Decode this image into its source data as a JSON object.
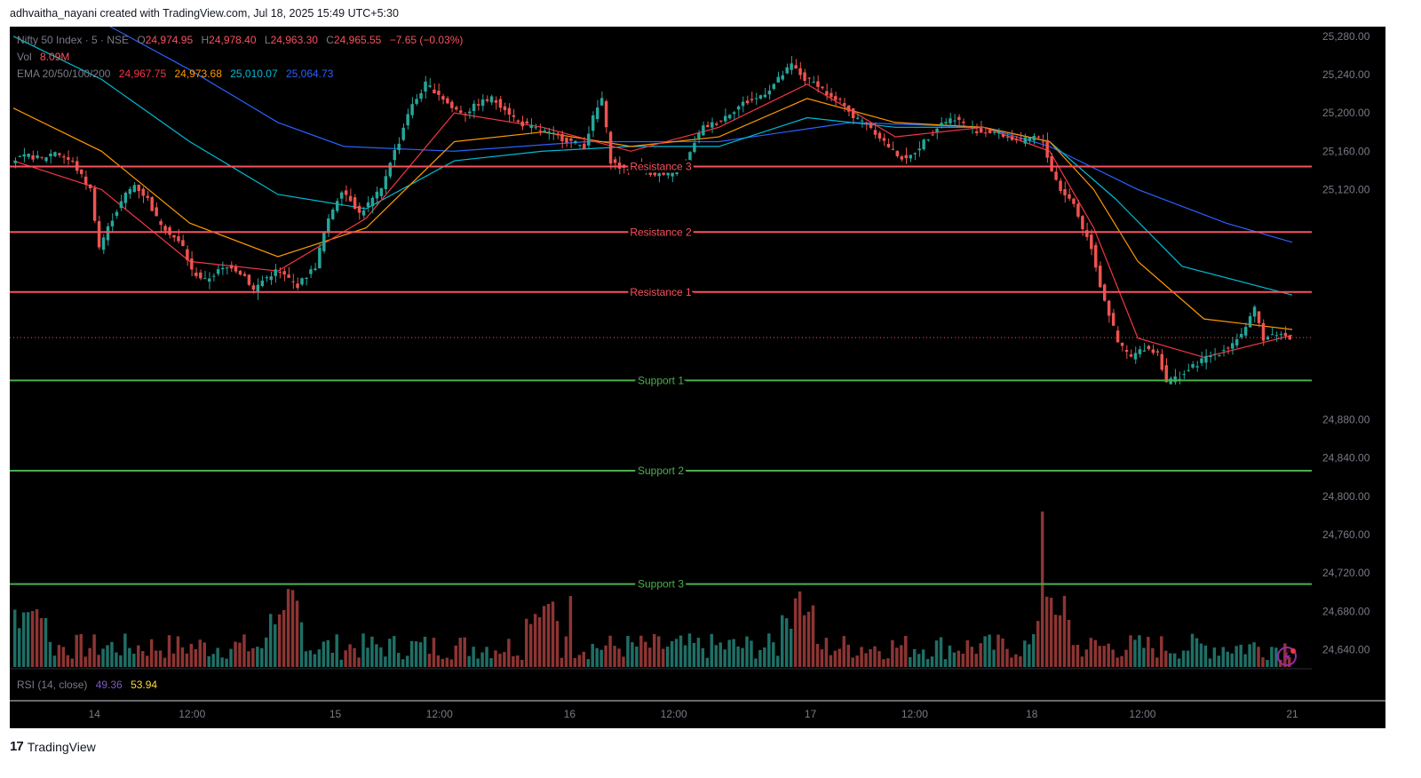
{
  "header": {
    "attribution": "adhvaitha_nayani created with TradingView.com, Jul 18, 2025 15:49 UTC+5:30"
  },
  "legend": {
    "symbol": "Nifty 50 Index · 5 · NSE",
    "open_label": "O",
    "open": "24,974.95",
    "high_label": "H",
    "high": "24,978.40",
    "low_label": "L",
    "low": "24,963.30",
    "close_label": "C",
    "close": "24,965.55",
    "change": "−7.65 (−0.03%)",
    "vol_label": "Vol",
    "vol": "8.09M",
    "ema_label": "EMA 20/50/100/200",
    "ema20": "24,967.75",
    "ema50": "24,973.68",
    "ema100": "25,010.07",
    "ema200": "25,064.73"
  },
  "rsi": {
    "label": "RSI (14, close)",
    "rsi": "49.36",
    "ma": "53.94"
  },
  "colors": {
    "background": "#000000",
    "up": "#26a69a",
    "down": "#ef5350",
    "resistance": "#f7525f",
    "support": "#4caf50",
    "ema20": "#f23645",
    "ema50": "#ff9800",
    "ema100": "#00bcd4",
    "ema200": "#2962ff"
  },
  "chart_data": {
    "type": "candlestick",
    "title": "Nifty 50 Index · 5 · NSE",
    "ylim": [
      24620,
      25290
    ],
    "y_ticks": [
      "25,280.00",
      "25,240.00",
      "25,200.00",
      "25,160.00",
      "25,120.00",
      "24,880.00",
      "24,840.00",
      "24,800.00",
      "24,760.00",
      "24,720.00",
      "24,680.00",
      "24,640.00"
    ],
    "x_ticks": [
      "14",
      "12:00",
      "15",
      "12:00",
      "16",
      "12:00",
      "17",
      "12:00",
      "18",
      "12:00",
      "21"
    ],
    "levels": [
      {
        "name": "Resistance 3",
        "value": 25144.1,
        "label": "25,144.10",
        "kind": "resistance"
      },
      {
        "name": "Resistance 2",
        "value": 25075.65,
        "label": "25,075.65",
        "kind": "resistance"
      },
      {
        "name": "Resistance 1",
        "value": 25013.1,
        "label": "25,013.10",
        "kind": "resistance"
      },
      {
        "name": "Support 1",
        "value": 24920.85,
        "label": "24,920.85",
        "kind": "support"
      },
      {
        "name": "Support 2",
        "value": 24826.6,
        "label": "24,826.60",
        "kind": "support"
      },
      {
        "name": "Support 3",
        "value": 24708.35,
        "label": "24,708.35",
        "kind": "support"
      }
    ],
    "price_tags": [
      {
        "label": "25,064.73",
        "value": 25064.73,
        "color": "#2962ff"
      },
      {
        "label": "25,010.07",
        "value": 25010.07,
        "color": "#00bcd4"
      },
      {
        "label": "24,973.68",
        "value": 24973.68,
        "color": "#ff9800"
      },
      {
        "label": "24,967.75",
        "value": 24967.75,
        "color": "#f23645"
      },
      {
        "label": "24,965.55",
        "value": 24965.55,
        "color": "#f7525f"
      }
    ],
    "last_price": 24965.55,
    "volume_tag": "8.09M",
    "close_path": [
      [
        0,
        25150
      ],
      [
        4,
        25155
      ],
      [
        7,
        25152
      ],
      [
        10,
        25160
      ],
      [
        14,
        25148
      ],
      [
        18,
        25120
      ],
      [
        20,
        25060
      ],
      [
        23,
        25090
      ],
      [
        26,
        25115
      ],
      [
        28,
        25125
      ],
      [
        31,
        25110
      ],
      [
        33,
        25090
      ],
      [
        36,
        25075
      ],
      [
        39,
        25060
      ],
      [
        41,
        25035
      ],
      [
        44,
        25025
      ],
      [
        47,
        25035
      ],
      [
        50,
        25040
      ],
      [
        53,
        25030
      ],
      [
        55,
        25015
      ],
      [
        57,
        25025
      ],
      [
        60,
        25035
      ],
      [
        62,
        25030
      ],
      [
        65,
        25020
      ],
      [
        67,
        25030
      ],
      [
        69,
        25040
      ],
      [
        71,
        25075
      ],
      [
        73,
        25100
      ],
      [
        75,
        25120
      ],
      [
        77,
        25110
      ],
      [
        79,
        25095
      ],
      [
        81,
        25105
      ],
      [
        84,
        25120
      ],
      [
        86,
        25150
      ],
      [
        88,
        25170
      ],
      [
        90,
        25200
      ],
      [
        92,
        25215
      ],
      [
        94,
        25230
      ],
      [
        97,
        25220
      ],
      [
        100,
        25205
      ],
      [
        103,
        25200
      ],
      [
        106,
        25210
      ],
      [
        109,
        25215
      ],
      [
        112,
        25205
      ],
      [
        115,
        25190
      ],
      [
        118,
        25185
      ],
      [
        121,
        25180
      ],
      [
        124,
        25175
      ],
      [
        127,
        25170
      ],
      [
        130,
        25165
      ],
      [
        132,
        25195
      ],
      [
        134,
        25215
      ],
      [
        136,
        25150
      ],
      [
        139,
        25140
      ],
      [
        142,
        25145
      ],
      [
        145,
        25138
      ],
      [
        148,
        25135
      ],
      [
        151,
        25140
      ],
      [
        153,
        25145
      ],
      [
        155,
        25170
      ],
      [
        157,
        25185
      ],
      [
        160,
        25190
      ],
      [
        163,
        25200
      ],
      [
        166,
        25210
      ],
      [
        169,
        25215
      ],
      [
        172,
        25225
      ],
      [
        175,
        25240
      ],
      [
        177,
        25250
      ],
      [
        180,
        25235
      ],
      [
        183,
        25230
      ],
      [
        186,
        25215
      ],
      [
        189,
        25210
      ],
      [
        191,
        25195
      ],
      [
        194,
        25190
      ],
      [
        197,
        25175
      ],
      [
        200,
        25160
      ],
      [
        203,
        25150
      ],
      [
        205,
        25160
      ],
      [
        208,
        25175
      ],
      [
        211,
        25190
      ],
      [
        214,
        25195
      ],
      [
        217,
        25185
      ],
      [
        220,
        25180
      ],
      [
        223,
        25180
      ],
      [
        226,
        25175
      ],
      [
        229,
        25170
      ],
      [
        232,
        25175
      ],
      [
        234,
        25170
      ],
      [
        236,
        25140
      ],
      [
        238,
        25120
      ],
      [
        241,
        25105
      ],
      [
        243,
        25080
      ],
      [
        245,
        25060
      ],
      [
        247,
        25020
      ],
      [
        249,
        24990
      ],
      [
        251,
        24960
      ],
      [
        254,
        24945
      ],
      [
        257,
        24955
      ],
      [
        260,
        24950
      ],
      [
        262,
        24920
      ],
      [
        265,
        24925
      ],
      [
        268,
        24935
      ],
      [
        271,
        24945
      ],
      [
        274,
        24950
      ],
      [
        277,
        24960
      ],
      [
        280,
        24975
      ],
      [
        282,
        24995
      ],
      [
        284,
        24965
      ],
      [
        287,
        24970
      ],
      [
        290,
        24966
      ]
    ],
    "ema20": [
      [
        0,
        25150
      ],
      [
        20,
        25120
      ],
      [
        40,
        25045
      ],
      [
        60,
        25035
      ],
      [
        80,
        25090
      ],
      [
        100,
        25200
      ],
      [
        120,
        25185
      ],
      [
        140,
        25160
      ],
      [
        160,
        25185
      ],
      [
        180,
        25230
      ],
      [
        200,
        25175
      ],
      [
        220,
        25185
      ],
      [
        235,
        25160
      ],
      [
        245,
        25080
      ],
      [
        255,
        24965
      ],
      [
        270,
        24945
      ],
      [
        290,
        24968
      ]
    ],
    "ema50": [
      [
        0,
        25205
      ],
      [
        20,
        25160
      ],
      [
        40,
        25085
      ],
      [
        60,
        25050
      ],
      [
        80,
        25080
      ],
      [
        100,
        25170
      ],
      [
        120,
        25180
      ],
      [
        140,
        25165
      ],
      [
        160,
        25175
      ],
      [
        180,
        25215
      ],
      [
        200,
        25190
      ],
      [
        220,
        25185
      ],
      [
        235,
        25170
      ],
      [
        245,
        25120
      ],
      [
        255,
        25045
      ],
      [
        270,
        24985
      ],
      [
        290,
        24974
      ]
    ],
    "ema100": [
      [
        0,
        25280
      ],
      [
        20,
        25235
      ],
      [
        40,
        25170
      ],
      [
        60,
        25115
      ],
      [
        80,
        25100
      ],
      [
        100,
        25150
      ],
      [
        120,
        25160
      ],
      [
        140,
        25165
      ],
      [
        160,
        25165
      ],
      [
        180,
        25195
      ],
      [
        200,
        25185
      ],
      [
        220,
        25185
      ],
      [
        235,
        25170
      ],
      [
        250,
        25110
      ],
      [
        265,
        25040
      ],
      [
        290,
        25010
      ]
    ],
    "ema200": [
      [
        0,
        25330
      ],
      [
        20,
        25295
      ],
      [
        40,
        25245
      ],
      [
        60,
        25190
      ],
      [
        75,
        25165
      ],
      [
        100,
        25160
      ],
      [
        130,
        25170
      ],
      [
        160,
        25170
      ],
      [
        190,
        25190
      ],
      [
        220,
        25185
      ],
      [
        235,
        25165
      ],
      [
        255,
        25120
      ],
      [
        275,
        25085
      ],
      [
        290,
        25065
      ]
    ]
  }
}
